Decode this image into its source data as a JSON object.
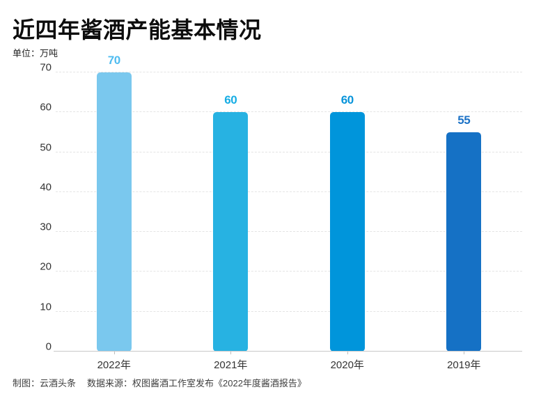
{
  "header": {
    "title": "近四年酱酒产能基本情况",
    "unit_label": "单位：万吨"
  },
  "footer": {
    "credit": "制图：云酒头条",
    "source": "数据来源：权图酱酒工作室发布《2022年度酱酒报告》"
  },
  "chart_data": {
    "type": "bar",
    "title": "近四年酱酒产能基本情况",
    "unit": "万吨",
    "categories": [
      "2022年",
      "2021年",
      "2020年",
      "2019年"
    ],
    "values": [
      70,
      60,
      60,
      55
    ],
    "ylim": [
      0,
      70
    ],
    "yticks": [
      0,
      10,
      20,
      30,
      40,
      50,
      60,
      70
    ],
    "grid": "horizontal-dashed",
    "legend": "none",
    "bar_colors": [
      "#7AC8EE",
      "#27B2E2",
      "#0095DB",
      "#1571C5"
    ],
    "value_label_colors": [
      "#4FBCF0",
      "#16ADE4",
      "#0894DA",
      "#1C72C6"
    ],
    "grid_color": "#e4e4e4",
    "axis_color": "#c9c9c9",
    "tick_label_color": "#333333"
  }
}
